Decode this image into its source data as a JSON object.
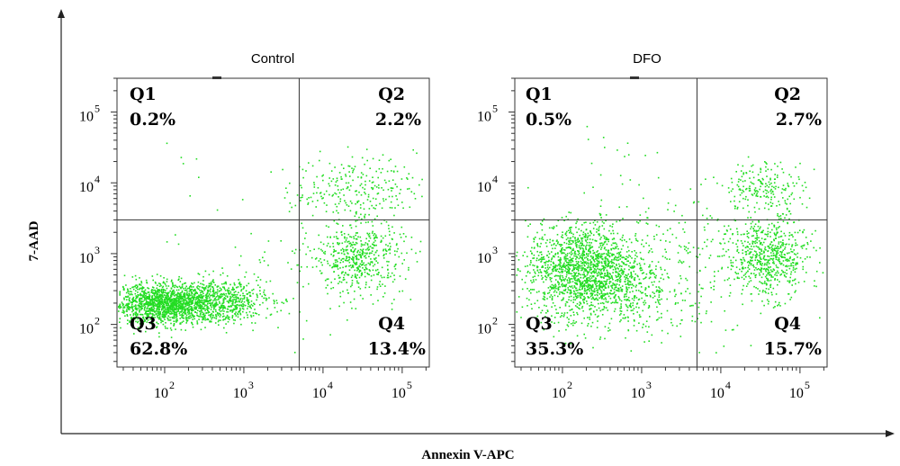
{
  "chart_data": {
    "type": "scatter",
    "xlabel": "Annexin V-APC",
    "ylabel": "7-AAD",
    "x_scale": "log",
    "y_scale": "log",
    "x_ticks": [
      {
        "value": 100,
        "base": "10",
        "exp": "2"
      },
      {
        "value": 1000,
        "base": "10",
        "exp": "3"
      },
      {
        "value": 10000,
        "base": "10",
        "exp": "4"
      },
      {
        "value": 100000,
        "base": "10",
        "exp": "5"
      }
    ],
    "y_ticks": [
      {
        "value": 100,
        "base": "10",
        "exp": "2"
      },
      {
        "value": 1000,
        "base": "10",
        "exp": "3"
      },
      {
        "value": 10000,
        "base": "10",
        "exp": "4"
      },
      {
        "value": 100000,
        "base": "10",
        "exp": "5"
      }
    ],
    "xlim": [
      25,
      220000
    ],
    "ylim": [
      25,
      300000
    ],
    "gate": {
      "x": 5000,
      "y": 3000
    },
    "point_color": "#22dd22",
    "panels": [
      {
        "title": "Control",
        "quadrants": [
          {
            "name": "Q1",
            "percent": "0.2%"
          },
          {
            "name": "Q2",
            "percent": "2.2%"
          },
          {
            "name": "Q3",
            "percent": "62.8%"
          },
          {
            "name": "Q4",
            "percent": "13.4%"
          }
        ]
      },
      {
        "title": "DFO",
        "quadrants": [
          {
            "name": "Q1",
            "percent": "0.5%"
          },
          {
            "name": "Q2",
            "percent": "2.7%"
          },
          {
            "name": "Q3",
            "percent": "35.3%"
          },
          {
            "name": "Q4",
            "percent": "15.7%"
          }
        ]
      }
    ]
  }
}
